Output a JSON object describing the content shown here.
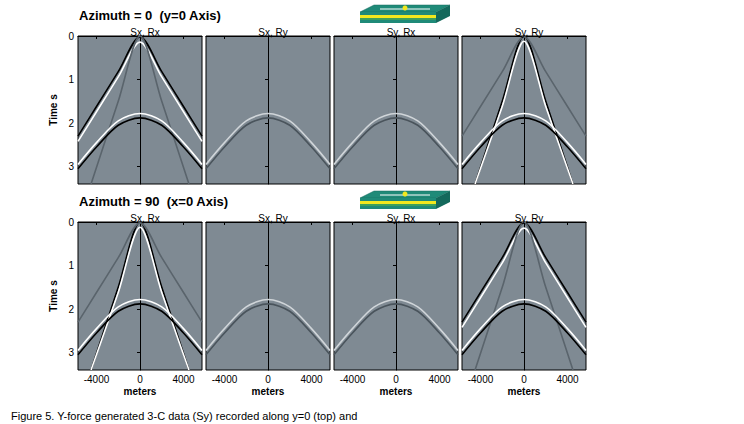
{
  "row_titles": [
    "Azimuth = 0  (y=0 Axis)",
    "Azimuth = 90  (x=0 Axis)"
  ],
  "caption": "Figure 5. Y-force generated 3-C data (Sy) recorded along y=0 (top) and",
  "chart_data": [
    {
      "type": "line",
      "title": "Sx, Rx",
      "ylabel": "Time s",
      "xlim": [
        -5700,
        5700
      ],
      "xticks": [
        -4000,
        0,
        4000
      ],
      "ylim": [
        0,
        3.4
      ],
      "yticks": [
        0,
        1,
        2,
        3
      ],
      "tick_labels": "y",
      "grid": false,
      "series": [
        {
          "color": "#000000",
          "x": [
            -5700,
            -4000,
            -2000,
            0,
            2000,
            4000,
            5700
          ],
          "values": [
            2.3,
            1.62,
            0.82,
            0.02,
            0.82,
            1.62,
            2.3
          ]
        },
        {
          "color": "#ffffff",
          "x": [
            -5700,
            -4000,
            -2000,
            0,
            2000,
            4000,
            5700
          ],
          "values": [
            2.42,
            1.74,
            0.94,
            0.14,
            0.94,
            1.74,
            2.42
          ]
        },
        {
          "color": "#5a646c",
          "x": [
            -4500,
            -2000,
            0,
            2000,
            4500
          ],
          "values": [
            3.4,
            1.5,
            0.0,
            1.5,
            3.4
          ]
        },
        {
          "color": "#ffffff",
          "x": [
            -5700,
            -4000,
            -2000,
            0,
            2000,
            4000,
            5700
          ],
          "values": [
            2.95,
            2.45,
            1.95,
            1.78,
            1.95,
            2.45,
            2.95
          ]
        },
        {
          "color": "#000000",
          "x": [
            -5700,
            -4000,
            -2000,
            0,
            2000,
            4000,
            5700
          ],
          "values": [
            3.05,
            2.55,
            2.05,
            1.88,
            2.05,
            2.55,
            3.05
          ]
        }
      ]
    },
    {
      "type": "line",
      "title": "Sx, Ry",
      "xlim": [
        -5700,
        5700
      ],
      "xticks": [
        -4000,
        0,
        4000
      ],
      "ylim": [
        0,
        3.4
      ],
      "yticks": [
        0,
        1,
        2,
        3
      ],
      "tick_labels": false,
      "grid": false,
      "series": [
        {
          "color": "#d0d5d9",
          "x": [
            -5700,
            -4000,
            -2000,
            0,
            2000,
            4000,
            5700
          ],
          "values": [
            2.95,
            2.45,
            1.95,
            1.78,
            1.95,
            2.45,
            2.95
          ]
        },
        {
          "color": "#4a545c",
          "x": [
            -5700,
            -4000,
            -2000,
            0,
            2000,
            4000,
            5700
          ],
          "values": [
            3.05,
            2.55,
            2.05,
            1.88,
            2.05,
            2.55,
            3.05
          ]
        }
      ]
    },
    {
      "type": "line",
      "title": "Sy, Rx",
      "xlim": [
        -5700,
        5700
      ],
      "xticks": [
        -4000,
        0,
        4000
      ],
      "ylim": [
        0,
        3.4
      ],
      "yticks": [
        0,
        1,
        2,
        3
      ],
      "tick_labels": false,
      "grid": false,
      "series": [
        {
          "color": "#d0d5d9",
          "x": [
            -5700,
            -4000,
            -2000,
            0,
            2000,
            4000,
            5700
          ],
          "values": [
            2.95,
            2.45,
            1.95,
            1.78,
            1.95,
            2.45,
            2.95
          ]
        },
        {
          "color": "#4a545c",
          "x": [
            -5700,
            -4000,
            -2000,
            0,
            2000,
            4000,
            5700
          ],
          "values": [
            3.05,
            2.55,
            2.05,
            1.88,
            2.05,
            2.55,
            3.05
          ]
        }
      ]
    },
    {
      "type": "line",
      "title": "Sy, Ry",
      "xlim": [
        -5700,
        5700
      ],
      "xticks": [
        -4000,
        0,
        4000
      ],
      "ylim": [
        0,
        3.4
      ],
      "yticks": [
        0,
        1,
        2,
        3
      ],
      "tick_labels": false,
      "grid": false,
      "series": [
        {
          "color": "#000000",
          "x": [
            -4500,
            -2000,
            0,
            2000,
            4500
          ],
          "values": [
            3.4,
            1.5,
            0.0,
            1.5,
            3.4
          ]
        },
        {
          "color": "#ffffff",
          "x": [
            -4500,
            -2000,
            0,
            2000,
            4500
          ],
          "values": [
            3.4,
            1.62,
            0.12,
            1.62,
            3.4
          ]
        },
        {
          "color": "#5a646c",
          "x": [
            -5700,
            -4000,
            -2000,
            0,
            2000,
            4000,
            5700
          ],
          "values": [
            2.3,
            1.62,
            0.82,
            0.02,
            0.82,
            1.62,
            2.3
          ]
        },
        {
          "color": "#ffffff",
          "x": [
            -5700,
            -4000,
            -2000,
            0,
            2000,
            4000,
            5700
          ],
          "values": [
            2.95,
            2.45,
            1.95,
            1.78,
            1.95,
            2.45,
            2.95
          ]
        },
        {
          "color": "#000000",
          "x": [
            -5700,
            -4000,
            -2000,
            0,
            2000,
            4000,
            5700
          ],
          "values": [
            3.05,
            2.55,
            2.05,
            1.88,
            2.05,
            2.55,
            3.05
          ]
        }
      ]
    },
    {
      "type": "line",
      "title": "Sx, Rx",
      "ylabel": "Time s",
      "xlabel": "meters",
      "xlim": [
        -5700,
        5700
      ],
      "xticks": [
        -4000,
        0,
        4000
      ],
      "ylim": [
        0,
        3.4
      ],
      "yticks": [
        0,
        1,
        2,
        3
      ],
      "tick_labels": true,
      "grid": false,
      "series": [
        {
          "color": "#000000",
          "x": [
            -4500,
            -2000,
            0,
            2000,
            4500
          ],
          "values": [
            3.4,
            1.5,
            0.0,
            1.5,
            3.4
          ]
        },
        {
          "color": "#ffffff",
          "x": [
            -4500,
            -2000,
            0,
            2000,
            4500
          ],
          "values": [
            3.4,
            1.62,
            0.12,
            1.62,
            3.4
          ]
        },
        {
          "color": "#5a646c",
          "x": [
            -5700,
            -4000,
            -2000,
            0,
            2000,
            4000,
            5700
          ],
          "values": [
            2.3,
            1.62,
            0.82,
            0.02,
            0.82,
            1.62,
            2.3
          ]
        },
        {
          "color": "#ffffff",
          "x": [
            -5700,
            -4000,
            -2000,
            0,
            2000,
            4000,
            5700
          ],
          "values": [
            2.95,
            2.45,
            1.95,
            1.78,
            1.95,
            2.45,
            2.95
          ]
        },
        {
          "color": "#000000",
          "x": [
            -5700,
            -4000,
            -2000,
            0,
            2000,
            4000,
            5700
          ],
          "values": [
            3.05,
            2.55,
            2.05,
            1.88,
            2.05,
            2.55,
            3.05
          ]
        }
      ]
    },
    {
      "type": "line",
      "title": "Sx, Ry",
      "xlabel": "meters",
      "xlim": [
        -5700,
        5700
      ],
      "xticks": [
        -4000,
        0,
        4000
      ],
      "ylim": [
        0,
        3.4
      ],
      "yticks": [
        0,
        1,
        2,
        3
      ],
      "tick_labels": "x",
      "grid": false,
      "series": [
        {
          "color": "#d0d5d9",
          "x": [
            -5700,
            -4000,
            -2000,
            0,
            2000,
            4000,
            5700
          ],
          "values": [
            2.95,
            2.45,
            1.95,
            1.78,
            1.95,
            2.45,
            2.95
          ]
        },
        {
          "color": "#4a545c",
          "x": [
            -5700,
            -4000,
            -2000,
            0,
            2000,
            4000,
            5700
          ],
          "values": [
            3.05,
            2.55,
            2.05,
            1.88,
            2.05,
            2.55,
            3.05
          ]
        }
      ]
    },
    {
      "type": "line",
      "title": "Sy, Rx",
      "xlabel": "meters",
      "xlim": [
        -5700,
        5700
      ],
      "xticks": [
        -4000,
        0,
        4000
      ],
      "ylim": [
        0,
        3.4
      ],
      "yticks": [
        0,
        1,
        2,
        3
      ],
      "tick_labels": "x",
      "grid": false,
      "series": [
        {
          "color": "#d0d5d9",
          "x": [
            -5700,
            -4000,
            -2000,
            0,
            2000,
            4000,
            5700
          ],
          "values": [
            2.95,
            2.45,
            1.95,
            1.78,
            1.95,
            2.45,
            2.95
          ]
        },
        {
          "color": "#4a545c",
          "x": [
            -5700,
            -4000,
            -2000,
            0,
            2000,
            4000,
            5700
          ],
          "values": [
            3.05,
            2.55,
            2.05,
            1.88,
            2.05,
            2.55,
            3.05
          ]
        }
      ]
    },
    {
      "type": "line",
      "title": "Sy, Ry",
      "xlabel": "meters",
      "xlim": [
        -5700,
        5700
      ],
      "xticks": [
        -4000,
        0,
        4000
      ],
      "ylim": [
        0,
        3.4
      ],
      "yticks": [
        0,
        1,
        2,
        3
      ],
      "tick_labels": "x",
      "grid": false,
      "series": [
        {
          "color": "#000000",
          "x": [
            -5700,
            -4000,
            -2000,
            0,
            2000,
            4000,
            5700
          ],
          "values": [
            2.3,
            1.62,
            0.82,
            0.02,
            0.82,
            1.62,
            2.3
          ]
        },
        {
          "color": "#ffffff",
          "x": [
            -5700,
            -4000,
            -2000,
            0,
            2000,
            4000,
            5700
          ],
          "values": [
            2.42,
            1.74,
            0.94,
            0.14,
            0.94,
            1.74,
            2.42
          ]
        },
        {
          "color": "#5a646c",
          "x": [
            -4500,
            -2000,
            0,
            2000,
            4500
          ],
          "values": [
            3.4,
            1.5,
            0.0,
            1.5,
            3.4
          ]
        },
        {
          "color": "#ffffff",
          "x": [
            -5700,
            -4000,
            -2000,
            0,
            2000,
            4000,
            5700
          ],
          "values": [
            2.95,
            2.45,
            1.95,
            1.78,
            1.95,
            2.45,
            2.95
          ]
        },
        {
          "color": "#000000",
          "x": [
            -5700,
            -4000,
            -2000,
            0,
            2000,
            4000,
            5700
          ],
          "values": [
            3.05,
            2.55,
            2.05,
            1.88,
            2.05,
            2.55,
            3.05
          ]
        }
      ]
    }
  ]
}
